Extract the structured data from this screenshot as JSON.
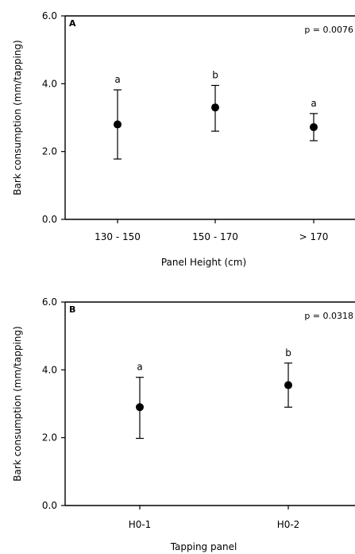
{
  "chart_data": [
    {
      "type": "scatter",
      "panel_label": "A",
      "p_value": "p = 0.0076",
      "xlabel": "Panel Height (cm)",
      "ylabel": "Bark consumption (mm/tapping)",
      "ylim": [
        0,
        6
      ],
      "y_ticks": [
        "0.0",
        "2.0",
        "4.0",
        "6.0"
      ],
      "categories": [
        "130 - 150",
        "150  - 170",
        "> 170"
      ],
      "values": [
        2.8,
        3.3,
        2.72
      ],
      "error_low": [
        1.78,
        2.6,
        2.32
      ],
      "error_high": [
        3.82,
        3.95,
        3.12
      ],
      "significance": [
        "a",
        "b",
        "a"
      ],
      "grid": false
    },
    {
      "type": "scatter",
      "panel_label": "B",
      "p_value": "p = 0.0318",
      "xlabel": "Tapping panel",
      "ylabel": "Bark consumption (mm/tapping)",
      "ylim": [
        0,
        6
      ],
      "y_ticks": [
        "0.0",
        "2.0",
        "4.0",
        "6.0"
      ],
      "categories": [
        "H0-1",
        "H0-2"
      ],
      "values": [
        2.9,
        3.55
      ],
      "error_low": [
        1.98,
        2.9
      ],
      "error_high": [
        3.78,
        4.2
      ],
      "significance": [
        "a",
        "b"
      ],
      "grid": false
    }
  ]
}
